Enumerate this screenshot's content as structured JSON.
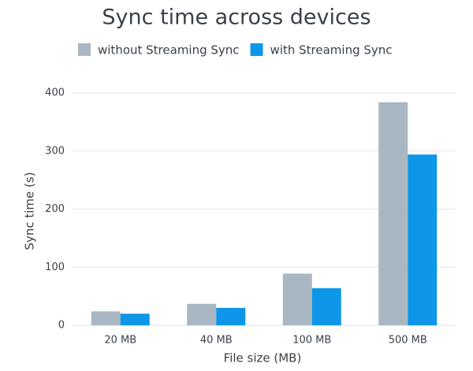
{
  "chart_data": {
    "type": "bar",
    "title": "Sync time across devices",
    "x_label": "File size (MB)",
    "y_label": "Sync time (s)",
    "categories": [
      "20 MB",
      "40 MB",
      "100 MB",
      "500 MB"
    ],
    "series": [
      {
        "name": "without Streaming Sync",
        "color": "#a9b7c2",
        "values": [
          24,
          37,
          89,
          384
        ]
      },
      {
        "name": "with Streaming Sync",
        "color": "#0e96e8",
        "values": [
          20,
          30,
          64,
          294
        ]
      }
    ],
    "ylim": [
      0,
      400
    ],
    "yticks": [
      0,
      100,
      200,
      300,
      400
    ],
    "grid": true
  }
}
